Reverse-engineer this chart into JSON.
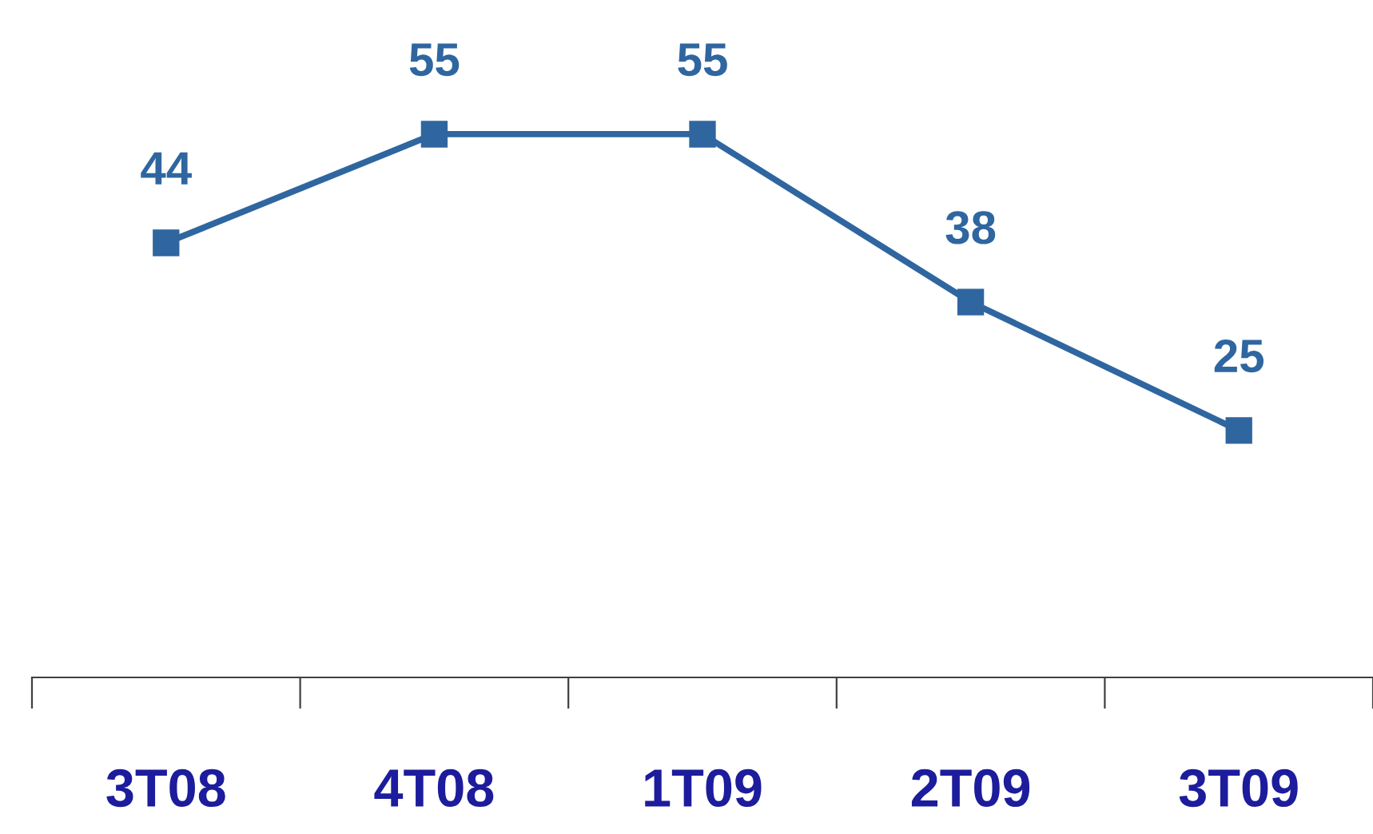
{
  "chart_data": {
    "type": "line",
    "categories": [
      "3T08",
      "4T08",
      "1T09",
      "2T09",
      "3T09"
    ],
    "series": [
      {
        "color": "#2f66a0",
        "values": [
          44,
          55,
          55,
          38,
          25
        ]
      }
    ],
    "data_labels": true,
    "marker": "square",
    "line_style": "solid",
    "grid": false,
    "legend": false,
    "tick_labels": "x"
  }
}
